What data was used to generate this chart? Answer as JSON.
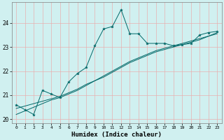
{
  "xlabel": "Humidex (Indice chaleur)",
  "bg_color": "#d0f0f0",
  "grid_color": "#e8b0b0",
  "line_color": "#006868",
  "x_data": [
    0,
    1,
    2,
    3,
    4,
    5,
    6,
    7,
    8,
    9,
    10,
    11,
    12,
    13,
    14,
    15,
    16,
    17,
    18,
    19,
    20,
    21,
    22,
    23
  ],
  "y_jagged": [
    20.6,
    20.4,
    20.2,
    21.2,
    21.05,
    20.9,
    21.55,
    21.9,
    22.15,
    23.05,
    23.75,
    23.85,
    24.55,
    23.55,
    23.55,
    23.15,
    23.15,
    23.15,
    23.05,
    23.1,
    23.15,
    23.5,
    23.6,
    23.65
  ],
  "y_smooth1": [
    20.2,
    20.35,
    20.5,
    20.65,
    20.8,
    20.9,
    21.05,
    21.2,
    21.4,
    21.6,
    21.8,
    22.0,
    22.2,
    22.4,
    22.55,
    22.7,
    22.85,
    22.95,
    23.05,
    23.15,
    23.25,
    23.35,
    23.45,
    23.55
  ],
  "y_smooth2": [
    20.45,
    20.55,
    20.65,
    20.75,
    20.85,
    20.95,
    21.1,
    21.25,
    21.45,
    21.6,
    21.75,
    21.95,
    22.15,
    22.35,
    22.5,
    22.65,
    22.8,
    22.9,
    23.0,
    23.1,
    23.2,
    23.3,
    23.45,
    23.6
  ],
  "ylim": [
    19.85,
    24.85
  ],
  "yticks": [
    20,
    21,
    22,
    23,
    24
  ],
  "xlim": [
    -0.5,
    23.5
  ],
  "xticks": [
    0,
    1,
    2,
    3,
    4,
    5,
    6,
    7,
    8,
    9,
    10,
    11,
    12,
    13,
    14,
    15,
    16,
    17,
    18,
    19,
    20,
    21,
    22,
    23
  ],
  "xtick_labels": [
    "0",
    "1",
    "2",
    "3",
    "4",
    "5",
    "6",
    "7",
    "8",
    "9",
    "10",
    "11",
    "12",
    "13",
    "14",
    "15",
    "16",
    "17",
    "18",
    "19",
    "20",
    "21",
    "22",
    "23"
  ]
}
